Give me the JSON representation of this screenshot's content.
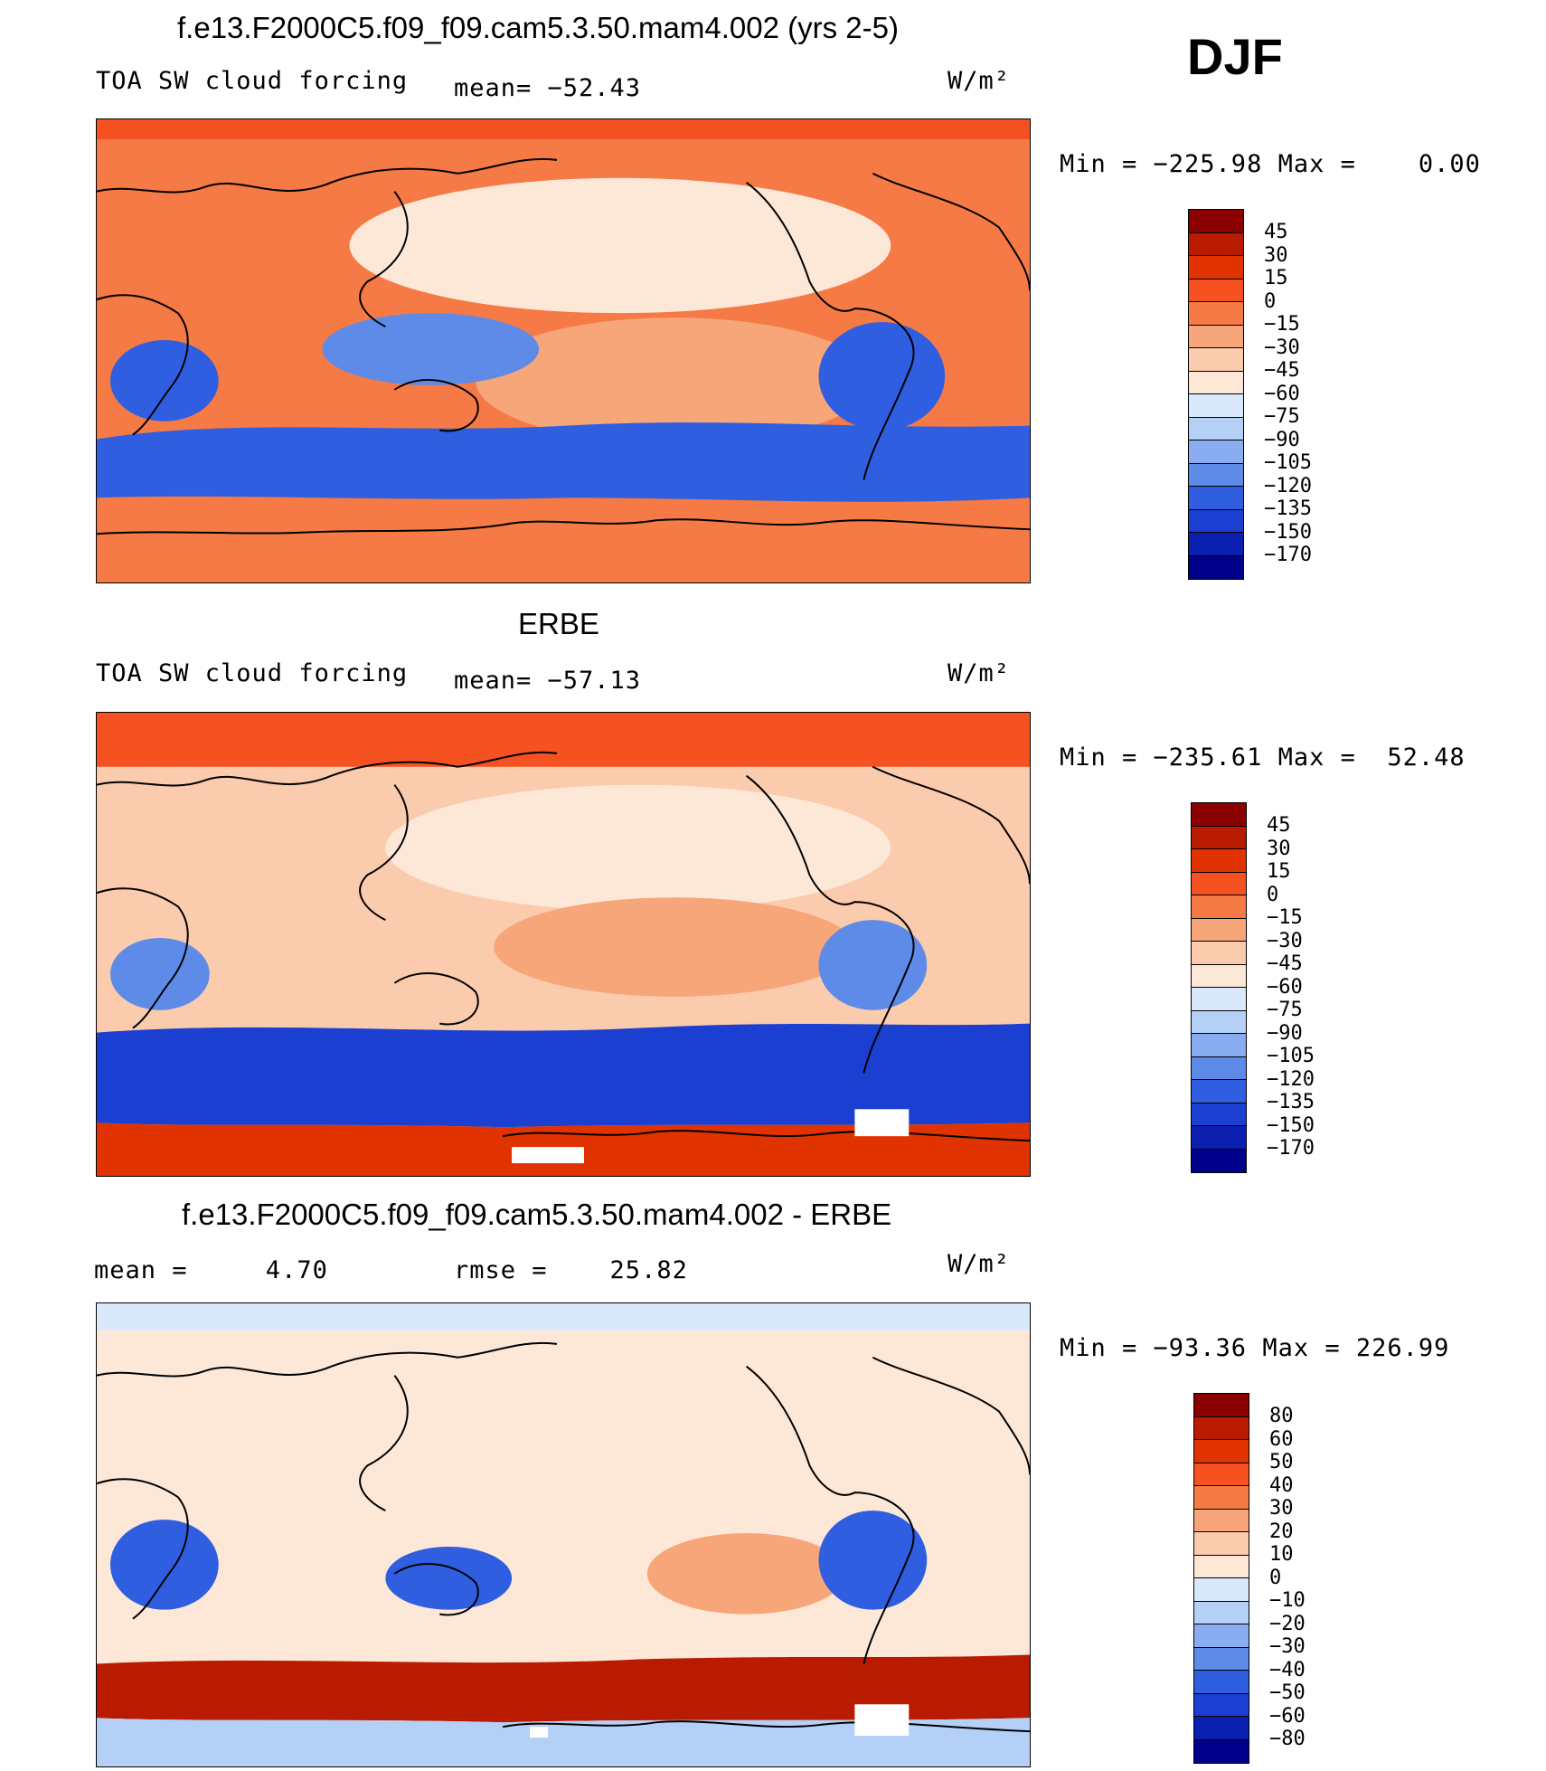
{
  "season": "DJF",
  "panels": [
    {
      "title": "f.e13.F2000C5.f09_f09.cam5.3.50.mam4.002 (yrs 2-5)",
      "left_label": "TOA SW cloud forcing",
      "middle_label": "mean= −52.43",
      "units": "W/m²",
      "minmax": "Min = −225.98 Max =    0.00",
      "colorbar": {
        "labels": [
          "45",
          "30",
          "15",
          "0",
          "−15",
          "−30",
          "−45",
          "−60",
          "−75",
          "−90",
          "−105",
          "−120",
          "−135",
          "−150",
          "−170"
        ],
        "colors": [
          "#8b0000",
          "#b81b00",
          "#e03300",
          "#f55121",
          "#f57a45",
          "#f7a67a",
          "#fbcbad",
          "#fde8d8",
          "#d9e9fb",
          "#b4d0f7",
          "#89adf0",
          "#5e8be8",
          "#2f5fe0",
          "#1b3fd0",
          "#0a1fb0",
          "#00008b"
        ]
      },
      "map_field": {
        "background": "#f57a45",
        "regions": [
          {
            "name": "arctic-band",
            "color": "#f55121"
          },
          {
            "name": "north-pacific-cloud",
            "color": "#fde8d8"
          },
          {
            "name": "tropical-pacific-dry",
            "color": "#f7a67a"
          },
          {
            "name": "southern-ocean-belt",
            "color": "#2f5fe0"
          },
          {
            "name": "south-america-convection",
            "color": "#2f5fe0"
          },
          {
            "name": "africa-convection",
            "color": "#2f5fe0"
          },
          {
            "name": "maritime-continent",
            "color": "#5e8be8"
          }
        ]
      }
    },
    {
      "title": "ERBE",
      "left_label": "TOA SW cloud forcing",
      "middle_label": "mean= −57.13",
      "units": "W/m²",
      "minmax": "Min = −235.61 Max =  52.48",
      "colorbar": {
        "labels": [
          "45",
          "30",
          "15",
          "0",
          "−15",
          "−30",
          "−45",
          "−60",
          "−75",
          "−90",
          "−105",
          "−120",
          "−135",
          "−150",
          "−170"
        ],
        "colors": [
          "#8b0000",
          "#b81b00",
          "#e03300",
          "#f55121",
          "#f57a45",
          "#f7a67a",
          "#fbcbad",
          "#fde8d8",
          "#d9e9fb",
          "#b4d0f7",
          "#89adf0",
          "#5e8be8",
          "#2f5fe0",
          "#1b3fd0",
          "#0a1fb0",
          "#00008b"
        ]
      },
      "map_field": {
        "background": "#fbcbad",
        "regions": [
          {
            "name": "arctic-band",
            "color": "#f55121"
          },
          {
            "name": "north-pacific-cloud",
            "color": "#fde8d8"
          },
          {
            "name": "tropical-pacific-dry",
            "color": "#f7a67a"
          },
          {
            "name": "southern-ocean-belt",
            "color": "#1b3fd0"
          },
          {
            "name": "antarctica",
            "color": "#e03300"
          },
          {
            "name": "south-america-convection",
            "color": "#5e8be8"
          },
          {
            "name": "africa-convection",
            "color": "#5e8be8"
          }
        ]
      }
    },
    {
      "title": "f.e13.F2000C5.f09_f09.cam5.3.50.mam4.002 - ERBE",
      "left_label": "mean =     4.70",
      "middle_label": "rmse =    25.82",
      "units": "W/m²",
      "minmax": "Min = −93.36 Max = 226.99",
      "colorbar": {
        "labels": [
          "80",
          "60",
          "50",
          "40",
          "30",
          "20",
          "10",
          "0",
          "−10",
          "−20",
          "−30",
          "−40",
          "−50",
          "−60",
          "−80"
        ],
        "colors": [
          "#8b0000",
          "#b81b00",
          "#e03300",
          "#f55121",
          "#f57a45",
          "#f7a67a",
          "#fbcbad",
          "#fde8d8",
          "#d9e9fb",
          "#b4d0f7",
          "#89adf0",
          "#5e8be8",
          "#2f5fe0",
          "#1b3fd0",
          "#0a1fb0",
          "#00008b"
        ]
      },
      "map_field": {
        "background": "#fde8d8",
        "regions": [
          {
            "name": "arctic-band",
            "color": "#d9e9fb"
          },
          {
            "name": "southern-ocean-positive",
            "color": "#b81b00"
          },
          {
            "name": "antarctica-negative",
            "color": "#b4d0f7"
          },
          {
            "name": "tropical-pacific-positive",
            "color": "#f7a67a"
          },
          {
            "name": "south-america-negative",
            "color": "#2f5fe0"
          },
          {
            "name": "africa-negative",
            "color": "#2f5fe0"
          },
          {
            "name": "australia-negative",
            "color": "#2f5fe0"
          }
        ]
      }
    }
  ]
}
